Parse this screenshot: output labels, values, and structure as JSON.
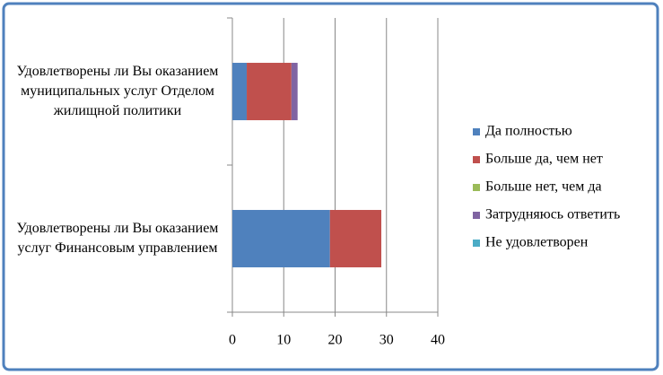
{
  "chart_data": {
    "type": "stacked-barh",
    "categories": [
      "Удовлетворены ли Вы оказанием муниципальных услуг  Отделом жилищной политики",
      "Удовлетворены ли Вы оказанием услуг Финансовым управлением"
    ],
    "series": [
      {
        "name": "Да полностью",
        "color": "#4f81bd",
        "values": [
          2.8,
          19
        ]
      },
      {
        "name": "Больше да, чем нет",
        "color": "#c0504d",
        "values": [
          8.7,
          10
        ]
      },
      {
        "name": "Больше нет, чем да",
        "color": "#9bbb59",
        "values": [
          0,
          0
        ]
      },
      {
        "name": "Затрудняюсь ответить",
        "color": "#8064a2",
        "values": [
          1.2,
          0
        ]
      },
      {
        "name": "Не удовлетворен",
        "color": "#4bacc6",
        "values": [
          0,
          0
        ]
      }
    ],
    "xlim": [
      0,
      40
    ],
    "xticks": [
      0,
      10,
      20,
      30,
      40
    ],
    "grid": true,
    "legend": "right"
  }
}
